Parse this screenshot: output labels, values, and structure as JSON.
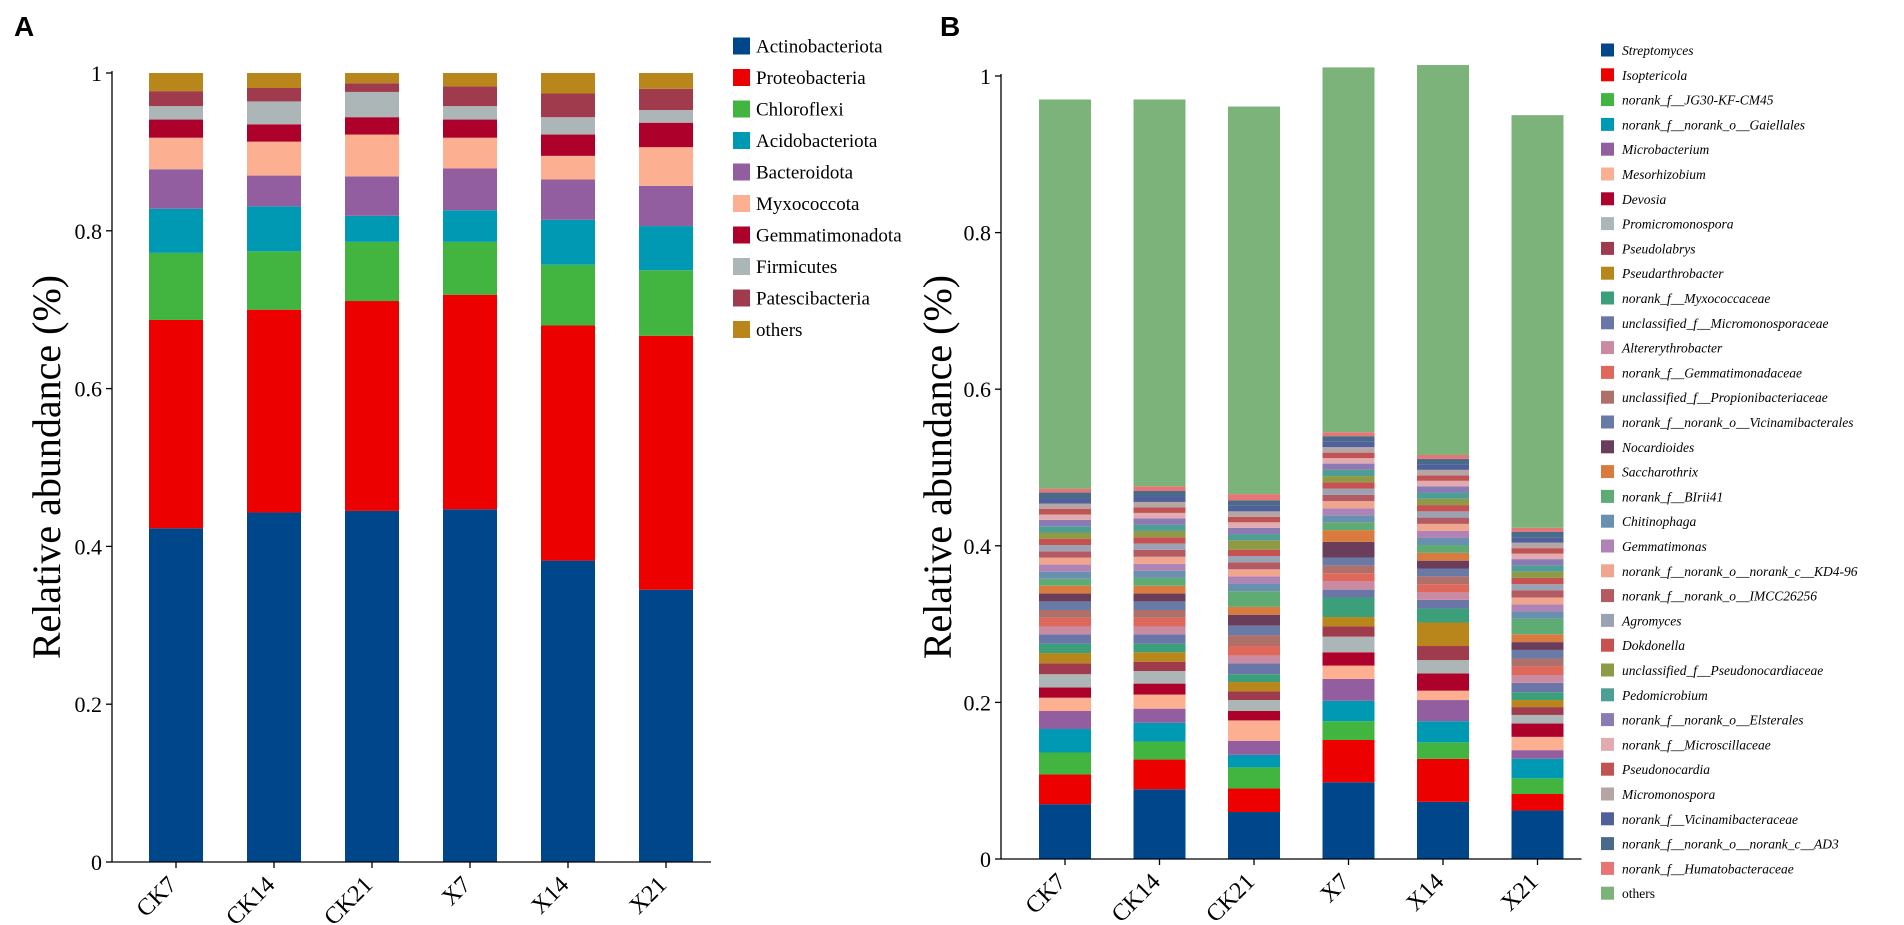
{
  "chart_data": [
    {
      "panel": "A",
      "type": "stacked-bar",
      "ylabel": "Relative abundance (%)",
      "ylim": [
        0,
        1
      ],
      "yticks": [
        "0",
        "0.2",
        "0.4",
        "0.6",
        "0.8",
        "1"
      ],
      "categories": [
        "CK7",
        "CK14",
        "CK21",
        "X7",
        "X14",
        "X21"
      ],
      "legend_position": "right",
      "series": [
        {
          "name": "Actinobacteriota",
          "color": "#00468b",
          "values": [
            0.423,
            0.443,
            0.445,
            0.447,
            0.382,
            0.345
          ]
        },
        {
          "name": "Proteobacteria",
          "color": "#ed0000",
          "values": [
            0.264,
            0.257,
            0.266,
            0.272,
            0.298,
            0.322
          ]
        },
        {
          "name": "Chloroflexi",
          "color": "#42b540",
          "values": [
            0.085,
            0.074,
            0.075,
            0.067,
            0.077,
            0.083
          ]
        },
        {
          "name": "Acidobacteriota",
          "color": "#0099b4",
          "values": [
            0.056,
            0.057,
            0.033,
            0.04,
            0.057,
            0.056
          ]
        },
        {
          "name": "Bacteroidota",
          "color": "#925e9f",
          "values": [
            0.05,
            0.039,
            0.05,
            0.053,
            0.051,
            0.051
          ]
        },
        {
          "name": "Myxococcota",
          "color": "#fdaf91",
          "values": [
            0.04,
            0.043,
            0.053,
            0.039,
            0.03,
            0.049
          ]
        },
        {
          "name": "Gemmatimonadota",
          "color": "#ad002a",
          "values": [
            0.023,
            0.022,
            0.022,
            0.023,
            0.027,
            0.031
          ]
        },
        {
          "name": "Firmicutes",
          "color": "#adb6b6",
          "values": [
            0.017,
            0.029,
            0.032,
            0.017,
            0.022,
            0.016
          ]
        },
        {
          "name": "Patescibacteria",
          "color": "#a03b4e",
          "values": [
            0.019,
            0.017,
            0.011,
            0.025,
            0.03,
            0.027
          ]
        },
        {
          "name": "others",
          "color": "#b8861b",
          "values": [
            0.023,
            0.019,
            0.013,
            0.017,
            0.026,
            0.02
          ]
        }
      ]
    },
    {
      "panel": "B",
      "type": "stacked-bar",
      "ylabel": "Relative abundance (%)",
      "ylim": [
        0,
        1
      ],
      "yticks": [
        "0",
        "0.2",
        "0.4",
        "0.6",
        "0.8",
        "1"
      ],
      "categories": [
        "CK7",
        "CK14",
        "CK21",
        "X7",
        "X14",
        "X21"
      ],
      "legend_position": "right",
      "series": [
        {
          "name": "Streptomyces",
          "color": "#00468b",
          "values": [
            0.07,
            0.089,
            0.06,
            0.098,
            0.073,
            0.062
          ]
        },
        {
          "name": "Isoptericola",
          "color": "#ed0000",
          "values": [
            0.038,
            0.038,
            0.03,
            0.054,
            0.055,
            0.021
          ]
        },
        {
          "name": "norank_f__JG30-KF-CM45",
          "color": "#42b540",
          "values": [
            0.028,
            0.023,
            0.027,
            0.024,
            0.021,
            0.02
          ]
        },
        {
          "name": "norank_f__norank_o__Gaiellales",
          "color": "#0099b4",
          "values": [
            0.03,
            0.024,
            0.016,
            0.026,
            0.027,
            0.025
          ]
        },
        {
          "name": "Microbacterium",
          "color": "#925e9f",
          "values": [
            0.023,
            0.018,
            0.018,
            0.028,
            0.027,
            0.011
          ]
        },
        {
          "name": "Mesorhizobium",
          "color": "#fdaf91",
          "values": [
            0.017,
            0.018,
            0.026,
            0.017,
            0.012,
            0.017
          ]
        },
        {
          "name": "Devosia",
          "color": "#ad002a",
          "values": [
            0.013,
            0.014,
            0.012,
            0.017,
            0.022,
            0.017
          ]
        },
        {
          "name": "Promicromonospora",
          "color": "#adb6b6",
          "values": [
            0.017,
            0.016,
            0.014,
            0.02,
            0.017,
            0.011
          ]
        },
        {
          "name": "Pseudolabrys",
          "color": "#a03b4e",
          "values": [
            0.014,
            0.012,
            0.011,
            0.013,
            0.018,
            0.01
          ]
        },
        {
          "name": "Pseudarthrobacter",
          "color": "#b8861b",
          "values": [
            0.013,
            0.012,
            0.012,
            0.012,
            0.03,
            0.009
          ]
        },
        {
          "name": "norank_f__Myxococcaceae",
          "color": "#3b9f7a",
          "values": [
            0.012,
            0.011,
            0.01,
            0.025,
            0.018,
            0.01
          ]
        },
        {
          "name": "unclassified_f__Micromonosporaceae",
          "color": "#6a76a8",
          "values": [
            0.012,
            0.012,
            0.014,
            0.01,
            0.011,
            0.012
          ]
        },
        {
          "name": "Altererythrobacter",
          "color": "#c98aa2",
          "values": [
            0.01,
            0.01,
            0.01,
            0.011,
            0.01,
            0.01
          ]
        },
        {
          "name": "norank_f__Gemmatimonadaceae",
          "color": "#e0685a",
          "values": [
            0.011,
            0.011,
            0.012,
            0.01,
            0.01,
            0.011
          ]
        },
        {
          "name": "unclassified_f__Propionibacteriaceae",
          "color": "#b0706a",
          "values": [
            0.01,
            0.01,
            0.014,
            0.01,
            0.01,
            0.01
          ]
        },
        {
          "name": "norank_f__norank_o__Vicinamibacterales",
          "color": "#6a7aa6",
          "values": [
            0.011,
            0.011,
            0.012,
            0.01,
            0.01,
            0.011
          ]
        },
        {
          "name": "Nocardioides",
          "color": "#6a3d5a",
          "values": [
            0.01,
            0.01,
            0.014,
            0.02,
            0.01,
            0.01
          ]
        },
        {
          "name": "Saccharothrix",
          "color": "#d97a3f",
          "values": [
            0.01,
            0.01,
            0.01,
            0.015,
            0.01,
            0.01
          ]
        },
        {
          "name": "norank_f__BIrii41",
          "color": "#5eab73",
          "values": [
            0.009,
            0.01,
            0.02,
            0.01,
            0.01,
            0.02
          ]
        },
        {
          "name": "Chitinophaga",
          "color": "#6a90b0",
          "values": [
            0.009,
            0.009,
            0.01,
            0.009,
            0.009,
            0.009
          ]
        },
        {
          "name": "Gemmatimonas",
          "color": "#b083b7",
          "values": [
            0.009,
            0.009,
            0.009,
            0.009,
            0.009,
            0.009
          ]
        },
        {
          "name": "norank_f__norank_o__norank_c__KD4-96",
          "color": "#f0a58e",
          "values": [
            0.009,
            0.009,
            0.009,
            0.009,
            0.009,
            0.009
          ]
        },
        {
          "name": "norank_f__norank_o__IMCC26256",
          "color": "#b35a63",
          "values": [
            0.008,
            0.009,
            0.009,
            0.008,
            0.008,
            0.009
          ]
        },
        {
          "name": "Agromyces",
          "color": "#9aa2b4",
          "values": [
            0.008,
            0.008,
            0.008,
            0.008,
            0.008,
            0.008
          ]
        },
        {
          "name": "Dokdonella",
          "color": "#c75050",
          "values": [
            0.008,
            0.008,
            0.008,
            0.008,
            0.008,
            0.008
          ]
        },
        {
          "name": "unclassified_f__Pseudonocardiaceae",
          "color": "#8e9a45",
          "values": [
            0.008,
            0.008,
            0.012,
            0.008,
            0.008,
            0.008
          ]
        },
        {
          "name": "Pedomicrobium",
          "color": "#4f9e96",
          "values": [
            0.008,
            0.008,
            0.008,
            0.008,
            0.008,
            0.008
          ]
        },
        {
          "name": "norank_f__norank_o__Elsterales",
          "color": "#8c7ab4",
          "values": [
            0.008,
            0.008,
            0.008,
            0.008,
            0.008,
            0.008
          ]
        },
        {
          "name": "norank_f__Microscillaceae",
          "color": "#e3abb0",
          "values": [
            0.007,
            0.007,
            0.007,
            0.007,
            0.007,
            0.007
          ]
        },
        {
          "name": "Pseudonocardia",
          "color": "#c05353",
          "values": [
            0.007,
            0.007,
            0.007,
            0.007,
            0.007,
            0.007
          ]
        },
        {
          "name": "Micromonospora",
          "color": "#b5a5a5",
          "values": [
            0.007,
            0.007,
            0.007,
            0.007,
            0.007,
            0.007
          ]
        },
        {
          "name": "norank_f__Vicinamibacteraceae",
          "color": "#50609a",
          "values": [
            0.007,
            0.007,
            0.007,
            0.007,
            0.007,
            0.007
          ]
        },
        {
          "name": "norank_f__norank_o__norank_c__AD3",
          "color": "#4a6a8a",
          "values": [
            0.007,
            0.007,
            0.007,
            0.007,
            0.007,
            0.007
          ]
        },
        {
          "name": "norank_f__Humatobacteraceae",
          "color": "#e87575",
          "values": [
            0.005,
            0.006,
            0.008,
            0.005,
            0.005,
            0.005
          ]
        },
        {
          "name": "others",
          "color": "#7cb37a",
          "values": [
            0.497,
            0.494,
            0.495,
            0.466,
            0.498,
            0.527
          ]
        }
      ]
    }
  ]
}
